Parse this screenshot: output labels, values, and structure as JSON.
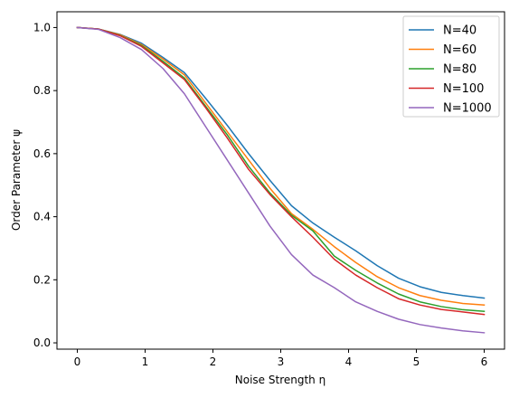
{
  "chart_data": {
    "type": "line",
    "title": "",
    "xlabel": "Noise Strength η",
    "ylabel": "Order Parameter ψ",
    "xlim": [
      -0.3,
      6.3
    ],
    "ylim": [
      -0.02,
      1.05
    ],
    "xticks": [
      0,
      1,
      2,
      3,
      4,
      5,
      6
    ],
    "xtick_labels": [
      "0",
      "1",
      "2",
      "3",
      "4",
      "5",
      "6"
    ],
    "yticks": [
      0.0,
      0.2,
      0.4,
      0.6,
      0.8,
      1.0
    ],
    "ytick_labels": [
      "0.0",
      "0.2",
      "0.4",
      "0.6",
      "0.8",
      "1.0"
    ],
    "grid": false,
    "legend_position": "top-right",
    "x": [
      0.0,
      0.3158,
      0.6316,
      0.9474,
      1.2632,
      1.5789,
      1.8947,
      2.2105,
      2.5263,
      2.8421,
      3.1579,
      3.4737,
      3.7895,
      4.1053,
      4.4211,
      4.7368,
      5.0526,
      5.3684,
      5.6842,
      6.0
    ],
    "series": [
      {
        "name": "N=40",
        "color": "#1f77b4",
        "values": [
          1.0,
          0.995,
          0.978,
          0.95,
          0.905,
          0.857,
          0.775,
          0.69,
          0.6,
          0.515,
          0.435,
          0.38,
          0.335,
          0.292,
          0.245,
          0.205,
          0.178,
          0.16,
          0.15,
          0.142
        ]
      },
      {
        "name": "N=60",
        "color": "#ff7f0e",
        "values": [
          1.0,
          0.995,
          0.977,
          0.946,
          0.9,
          0.85,
          0.76,
          0.67,
          0.58,
          0.49,
          0.41,
          0.36,
          0.305,
          0.255,
          0.21,
          0.175,
          0.15,
          0.135,
          0.125,
          0.12
        ]
      },
      {
        "name": "N=80",
        "color": "#2ca02c",
        "values": [
          1.0,
          0.995,
          0.975,
          0.943,
          0.893,
          0.84,
          0.75,
          0.66,
          0.56,
          0.475,
          0.405,
          0.355,
          0.275,
          0.23,
          0.19,
          0.155,
          0.13,
          0.115,
          0.105,
          0.1
        ]
      },
      {
        "name": "N=100",
        "color": "#d62728",
        "values": [
          1.0,
          0.995,
          0.974,
          0.94,
          0.888,
          0.835,
          0.745,
          0.65,
          0.55,
          0.47,
          0.4,
          0.335,
          0.265,
          0.215,
          0.175,
          0.14,
          0.12,
          0.106,
          0.098,
          0.09
        ]
      },
      {
        "name": "N=1000",
        "color": "#9467bd",
        "values": [
          1.0,
          0.994,
          0.968,
          0.93,
          0.87,
          0.79,
          0.685,
          0.58,
          0.475,
          0.37,
          0.28,
          0.215,
          0.175,
          0.13,
          0.1,
          0.075,
          0.058,
          0.047,
          0.038,
          0.032
        ]
      }
    ]
  }
}
